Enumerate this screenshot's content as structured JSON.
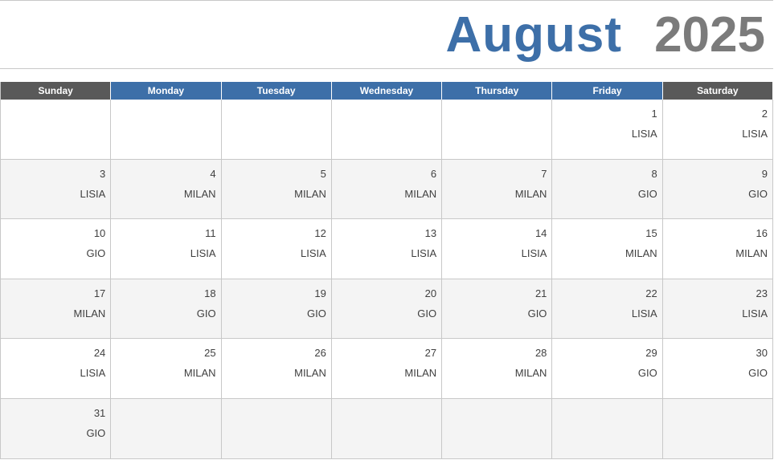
{
  "title": {
    "month": "August",
    "year": "2025"
  },
  "weekdays": [
    "Sunday",
    "Monday",
    "Tuesday",
    "Wednesday",
    "Thursday",
    "Friday",
    "Saturday"
  ],
  "weeks": [
    [
      {
        "day": "",
        "text": ""
      },
      {
        "day": "",
        "text": ""
      },
      {
        "day": "",
        "text": ""
      },
      {
        "day": "",
        "text": ""
      },
      {
        "day": "",
        "text": ""
      },
      {
        "day": "1",
        "text": "LISIA"
      },
      {
        "day": "2",
        "text": "LISIA"
      }
    ],
    [
      {
        "day": "3",
        "text": "LISIA"
      },
      {
        "day": "4",
        "text": "MILAN"
      },
      {
        "day": "5",
        "text": "MILAN"
      },
      {
        "day": "6",
        "text": "MILAN"
      },
      {
        "day": "7",
        "text": "MILAN"
      },
      {
        "day": "8",
        "text": "GIO"
      },
      {
        "day": "9",
        "text": "GIO"
      }
    ],
    [
      {
        "day": "10",
        "text": "GIO"
      },
      {
        "day": "11",
        "text": "LISIA"
      },
      {
        "day": "12",
        "text": "LISIA"
      },
      {
        "day": "13",
        "text": "LISIA"
      },
      {
        "day": "14",
        "text": "LISIA"
      },
      {
        "day": "15",
        "text": "MILAN"
      },
      {
        "day": "16",
        "text": "MILAN"
      }
    ],
    [
      {
        "day": "17",
        "text": "MILAN"
      },
      {
        "day": "18",
        "text": "GIO"
      },
      {
        "day": "19",
        "text": "GIO"
      },
      {
        "day": "20",
        "text": "GIO"
      },
      {
        "day": "21",
        "text": "GIO"
      },
      {
        "day": "22",
        "text": "LISIA"
      },
      {
        "day": "23",
        "text": "LISIA"
      }
    ],
    [
      {
        "day": "24",
        "text": "LISIA"
      },
      {
        "day": "25",
        "text": "MILAN"
      },
      {
        "day": "26",
        "text": "MILAN"
      },
      {
        "day": "27",
        "text": "MILAN"
      },
      {
        "day": "28",
        "text": "MILAN"
      },
      {
        "day": "29",
        "text": "GIO"
      },
      {
        "day": "30",
        "text": "GIO"
      }
    ],
    [
      {
        "day": "31",
        "text": "GIO"
      },
      {
        "day": "",
        "text": ""
      },
      {
        "day": "",
        "text": ""
      },
      {
        "day": "",
        "text": ""
      },
      {
        "day": "",
        "text": ""
      },
      {
        "day": "",
        "text": ""
      },
      {
        "day": "",
        "text": ""
      }
    ]
  ],
  "colors": {
    "month_title": "#3d6fa8",
    "year_title": "#7b7b7b",
    "weekday_header": "#3d6fa8",
    "weekend_header": "#595959",
    "shaded_row": "#f4f4f4"
  }
}
